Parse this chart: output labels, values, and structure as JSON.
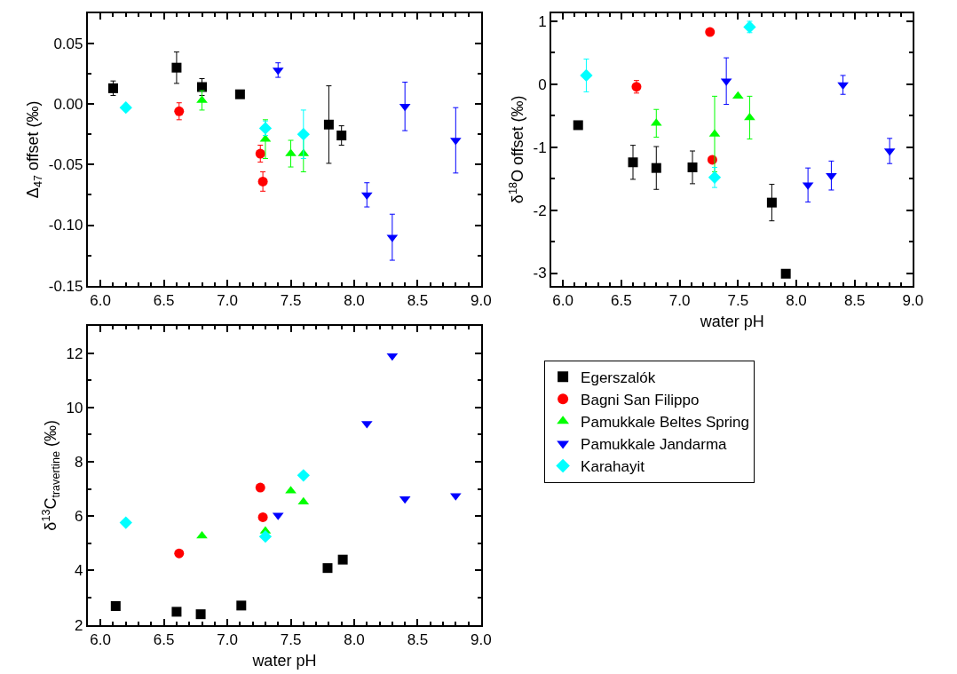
{
  "chart_data": [
    {
      "type": "scatter",
      "ylabel": "Δ$_{47}$ offset (‰)",
      "xlim": [
        5.9,
        9.0
      ],
      "xticks": [
        {
          "value": 6,
          "label": "6.0"
        },
        6.5,
        {
          "value": 7,
          "label": "7.0"
        },
        7.5,
        {
          "value": 8,
          "label": "8.0"
        },
        8.5,
        {
          "value": 9,
          "label": "9.0"
        }
      ],
      "ylim": [
        -0.15,
        0.075
      ],
      "yticks": [
        -0.15,
        {
          "value": -0.1,
          "label": "-0.10"
        },
        -0.05,
        {
          "value": 0,
          "label": "0.00"
        },
        0.05
      ],
      "grid": false,
      "legend": false,
      "series": [
        {
          "color": "#000000",
          "marker": "square",
          "x": [
            6.1,
            6.6,
            6.8,
            7.1,
            7.8,
            7.9
          ],
          "values": [
            0.013,
            0.03,
            0.014,
            0.008,
            -0.017,
            -0.026
          ],
          "errors": [
            0.006,
            0.013,
            0.007,
            null,
            0.032,
            0.008
          ]
        },
        {
          "color": "#ff0000",
          "marker": "circle",
          "x": [
            6.62,
            7.26,
            7.28
          ],
          "values": [
            -0.006,
            -0.041,
            -0.064
          ],
          "errors": [
            0.007,
            0.007,
            0.008
          ]
        },
        {
          "color": "#00ff00",
          "marker": "triangle",
          "x": [
            6.8,
            7.3,
            7.5,
            7.6
          ],
          "values": [
            0.003,
            -0.029,
            -0.041,
            -0.041
          ],
          "errors": [
            0.008,
            0.016,
            0.011,
            0.015
          ]
        },
        {
          "color": "#0000ff",
          "marker": "triangle-down",
          "x": [
            7.4,
            8.1,
            8.3,
            8.4,
            8.8
          ],
          "values": [
            0.028,
            -0.075,
            -0.11,
            -0.002,
            -0.03
          ],
          "errors": [
            0.006,
            0.01,
            0.019,
            0.02,
            0.027
          ]
        },
        {
          "color": "#00ffff",
          "marker": "diamond",
          "x": [
            6.2,
            7.3,
            7.6
          ],
          "values": [
            -0.003,
            -0.02,
            -0.025
          ],
          "errors": [
            null,
            0.006,
            0.02
          ]
        }
      ]
    },
    {
      "type": "scatter",
      "xlabel": "water pH",
      "ylabel": "δ$^{18}$O offset (‰)",
      "xlim": [
        5.9,
        9.0
      ],
      "xticks": [
        {
          "value": 6,
          "label": "6.0"
        },
        6.5,
        {
          "value": 7,
          "label": "7.0"
        },
        7.5,
        {
          "value": 8,
          "label": "8.0"
        },
        8.5,
        {
          "value": 9,
          "label": "9.0"
        }
      ],
      "ylim": [
        -3.2,
        1.13
      ],
      "yticks": [
        -3,
        -2,
        -1,
        0,
        1
      ],
      "grid": false,
      "legend": false,
      "series": [
        {
          "color": "#000000",
          "marker": "square",
          "x": [
            6.13,
            6.6,
            6.8,
            7.11,
            7.79,
            7.91
          ],
          "values": [
            -0.65,
            -1.24,
            -1.33,
            -1.32,
            -1.88,
            -3.01
          ],
          "errors": [
            null,
            0.27,
            0.34,
            0.26,
            0.29,
            null
          ]
        },
        {
          "color": "#ff0000",
          "marker": "circle",
          "x": [
            6.63,
            7.26,
            7.28
          ],
          "values": [
            -0.04,
            0.83,
            -1.2
          ],
          "errors": [
            0.1,
            null,
            0.05
          ]
        },
        {
          "color": "#00ff00",
          "marker": "triangle",
          "x": [
            6.8,
            7.3,
            7.5,
            7.6
          ],
          "values": [
            -0.62,
            -0.79,
            -0.19,
            -0.53
          ],
          "errors": [
            0.22,
            0.6,
            null,
            0.34
          ]
        },
        {
          "color": "#0000ff",
          "marker": "triangle-down",
          "x": [
            7.4,
            8.1,
            8.3,
            8.4,
            8.8
          ],
          "values": [
            0.05,
            -1.6,
            -1.45,
            -0.01,
            -1.06
          ],
          "errors": [
            0.37,
            0.27,
            0.23,
            0.15,
            0.2
          ]
        },
        {
          "color": "#00ffff",
          "marker": "diamond",
          "x": [
            6.2,
            7.3,
            7.6
          ],
          "values": [
            0.14,
            -1.48,
            0.91
          ],
          "errors": [
            0.26,
            0.16,
            0.09
          ]
        }
      ]
    },
    {
      "type": "scatter",
      "xlabel": "water pH",
      "ylabel": "δ$^{13}$C$_{travertine}$ (‰)",
      "xlim": [
        5.9,
        9.0
      ],
      "xticks": [
        {
          "value": 6,
          "label": "6.0"
        },
        6.5,
        {
          "value": 7,
          "label": "7.0"
        },
        7.5,
        {
          "value": 8,
          "label": "8.0"
        },
        8.5,
        {
          "value": 9,
          "label": "9.0"
        }
      ],
      "ylim": [
        2,
        13
      ],
      "yticks": [
        2,
        4,
        6,
        8,
        10,
        12
      ],
      "grid": false,
      "legend": "right",
      "series": [
        {
          "name": "Egerszalók",
          "color": "#000000",
          "marker": "square",
          "x": [
            6.12,
            6.6,
            6.79,
            7.11,
            7.79,
            7.91
          ],
          "values": [
            2.69,
            2.48,
            2.39,
            2.71,
            4.09,
            4.4
          ]
        },
        {
          "name": "Bagni San Filippo",
          "color": "#ff0000",
          "marker": "circle",
          "x": [
            6.62,
            7.26,
            7.28
          ],
          "values": [
            4.63,
            7.05,
            5.96
          ]
        },
        {
          "name": "Pamukkale Beltes Spring",
          "color": "#00ff00",
          "marker": "triangle",
          "x": [
            6.8,
            7.3,
            7.5,
            7.6
          ],
          "values": [
            5.27,
            5.45,
            6.93,
            6.52
          ]
        },
        {
          "name": "Pamukkale Jandarma",
          "color": "#0000ff",
          "marker": "triangle-down",
          "x": [
            7.4,
            8.1,
            8.3,
            8.4,
            8.8
          ],
          "values": [
            6.03,
            9.41,
            11.9,
            6.64,
            6.75
          ]
        },
        {
          "name": "Karahayit",
          "color": "#00ffff",
          "marker": "diamond",
          "x": [
            6.2,
            7.3,
            7.6
          ],
          "values": [
            5.76,
            5.25,
            7.5
          ]
        }
      ]
    }
  ]
}
